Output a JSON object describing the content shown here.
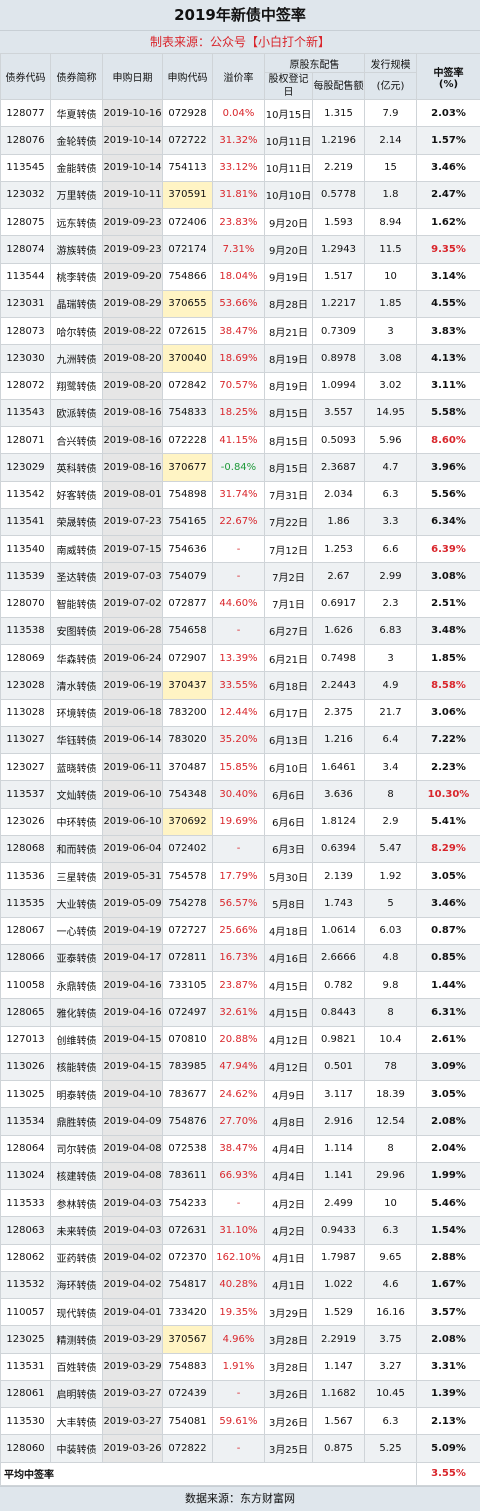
{
  "title": "2019年新债中签率",
  "subtitle": "制表来源：公众号【小白打个新】",
  "headers": {
    "bond_code": "债券代码",
    "bond_name": "债券简称",
    "apply_date": "申购日期",
    "apply_code": "申购代码",
    "premium": "溢价率",
    "placement_group": "原股东配售",
    "record_date": "股权登记日",
    "per_share": "每股配售额",
    "issue_size": "发行规模",
    "issue_unit": "(亿元)",
    "win_rate": "中签率",
    "win_unit": "(%)"
  },
  "rows": [
    {
      "code": "128077",
      "name": "华夏转债",
      "date": "2019-10-16",
      "apply": "072928",
      "apply_hl": false,
      "premium": "0.04%",
      "record": "10月15日",
      "per": "1.315",
      "size": "7.9",
      "rate": "2.03%",
      "hot": false
    },
    {
      "code": "128076",
      "name": "金轮转债",
      "date": "2019-10-14",
      "apply": "072722",
      "apply_hl": false,
      "premium": "31.32%",
      "record": "10月11日",
      "per": "1.2196",
      "size": "2.14",
      "rate": "1.57%",
      "hot": false
    },
    {
      "code": "113545",
      "name": "金能转债",
      "date": "2019-10-14",
      "apply": "754113",
      "apply_hl": false,
      "premium": "33.12%",
      "record": "10月11日",
      "per": "2.219",
      "size": "15",
      "rate": "3.46%",
      "hot": false
    },
    {
      "code": "123032",
      "name": "万里转债",
      "date": "2019-10-11",
      "apply": "370591",
      "apply_hl": true,
      "premium": "31.81%",
      "record": "10月10日",
      "per": "0.5778",
      "size": "1.8",
      "rate": "2.47%",
      "hot": false
    },
    {
      "code": "128075",
      "name": "远东转债",
      "date": "2019-09-23",
      "apply": "072406",
      "apply_hl": false,
      "premium": "23.83%",
      "record": "9月20日",
      "per": "1.593",
      "size": "8.94",
      "rate": "1.62%",
      "hot": false
    },
    {
      "code": "128074",
      "name": "游族转债",
      "date": "2019-09-23",
      "apply": "072174",
      "apply_hl": false,
      "premium": "7.31%",
      "record": "9月20日",
      "per": "1.2943",
      "size": "11.5",
      "rate": "9.35%",
      "hot": true
    },
    {
      "code": "113544",
      "name": "桃李转债",
      "date": "2019-09-20",
      "apply": "754866",
      "apply_hl": false,
      "premium": "18.04%",
      "record": "9月19日",
      "per": "1.517",
      "size": "10",
      "rate": "3.14%",
      "hot": false
    },
    {
      "code": "123031",
      "name": "晶瑞转债",
      "date": "2019-08-29",
      "apply": "370655",
      "apply_hl": true,
      "premium": "53.66%",
      "record": "8月28日",
      "per": "1.2217",
      "size": "1.85",
      "rate": "4.55%",
      "hot": false
    },
    {
      "code": "128073",
      "name": "哈尔转债",
      "date": "2019-08-22",
      "apply": "072615",
      "apply_hl": false,
      "premium": "38.47%",
      "record": "8月21日",
      "per": "0.7309",
      "size": "3",
      "rate": "3.83%",
      "hot": false
    },
    {
      "code": "123030",
      "name": "九洲转债",
      "date": "2019-08-20",
      "apply": "370040",
      "apply_hl": true,
      "premium": "18.69%",
      "record": "8月19日",
      "per": "0.8978",
      "size": "3.08",
      "rate": "4.13%",
      "hot": false
    },
    {
      "code": "128072",
      "name": "翔鹭转债",
      "date": "2019-08-20",
      "apply": "072842",
      "apply_hl": false,
      "premium": "70.57%",
      "record": "8月19日",
      "per": "1.0994",
      "size": "3.02",
      "rate": "3.11%",
      "hot": false
    },
    {
      "code": "113543",
      "name": "欧派转债",
      "date": "2019-08-16",
      "apply": "754833",
      "apply_hl": false,
      "premium": "18.25%",
      "record": "8月15日",
      "per": "3.557",
      "size": "14.95",
      "rate": "5.58%",
      "hot": false
    },
    {
      "code": "128071",
      "name": "合兴转债",
      "date": "2019-08-16",
      "apply": "072228",
      "apply_hl": false,
      "premium": "41.15%",
      "record": "8月15日",
      "per": "0.5093",
      "size": "5.96",
      "rate": "8.60%",
      "hot": true
    },
    {
      "code": "123029",
      "name": "英科转债",
      "date": "2019-08-16",
      "apply": "370677",
      "apply_hl": true,
      "premium": "-0.84%",
      "record": "8月15日",
      "per": "2.3687",
      "size": "4.7",
      "rate": "3.96%",
      "hot": false
    },
    {
      "code": "113542",
      "name": "好客转债",
      "date": "2019-08-01",
      "apply": "754898",
      "apply_hl": false,
      "premium": "31.74%",
      "record": "7月31日",
      "per": "2.034",
      "size": "6.3",
      "rate": "5.56%",
      "hot": false
    },
    {
      "code": "113541",
      "name": "荣晟转债",
      "date": "2019-07-23",
      "apply": "754165",
      "apply_hl": false,
      "premium": "22.67%",
      "record": "7月22日",
      "per": "1.86",
      "size": "3.3",
      "rate": "6.34%",
      "hot": false
    },
    {
      "code": "113540",
      "name": "南威转债",
      "date": "2019-07-15",
      "apply": "754636",
      "apply_hl": false,
      "premium": "-",
      "record": "7月12日",
      "per": "1.253",
      "size": "6.6",
      "rate": "6.39%",
      "hot": true
    },
    {
      "code": "113539",
      "name": "圣达转债",
      "date": "2019-07-03",
      "apply": "754079",
      "apply_hl": false,
      "premium": "-",
      "record": "7月2日",
      "per": "2.67",
      "size": "2.99",
      "rate": "3.08%",
      "hot": false
    },
    {
      "code": "128070",
      "name": "智能转债",
      "date": "2019-07-02",
      "apply": "072877",
      "apply_hl": false,
      "premium": "44.60%",
      "record": "7月1日",
      "per": "0.6917",
      "size": "2.3",
      "rate": "2.51%",
      "hot": false
    },
    {
      "code": "113538",
      "name": "安图转债",
      "date": "2019-06-28",
      "apply": "754658",
      "apply_hl": false,
      "premium": "-",
      "record": "6月27日",
      "per": "1.626",
      "size": "6.83",
      "rate": "3.48%",
      "hot": false
    },
    {
      "code": "128069",
      "name": "华森转债",
      "date": "2019-06-24",
      "apply": "072907",
      "apply_hl": false,
      "premium": "13.39%",
      "record": "6月21日",
      "per": "0.7498",
      "size": "3",
      "rate": "1.85%",
      "hot": false
    },
    {
      "code": "123028",
      "name": "清水转债",
      "date": "2019-06-19",
      "apply": "370437",
      "apply_hl": true,
      "premium": "33.55%",
      "record": "6月18日",
      "per": "2.2443",
      "size": "4.9",
      "rate": "8.58%",
      "hot": true
    },
    {
      "code": "113028",
      "name": "环境转债",
      "date": "2019-06-18",
      "apply": "783200",
      "apply_hl": false,
      "premium": "12.44%",
      "record": "6月17日",
      "per": "2.375",
      "size": "21.7",
      "rate": "3.06%",
      "hot": false
    },
    {
      "code": "113027",
      "name": "华钰转债",
      "date": "2019-06-14",
      "apply": "783020",
      "apply_hl": false,
      "premium": "35.20%",
      "record": "6月13日",
      "per": "1.216",
      "size": "6.4",
      "rate": "7.22%",
      "hot": false
    },
    {
      "code": "123027",
      "name": "蓝晓转债",
      "date": "2019-06-11",
      "apply": "370487",
      "apply_hl": false,
      "premium": "15.85%",
      "record": "6月10日",
      "per": "1.6461",
      "size": "3.4",
      "rate": "2.23%",
      "hot": false
    },
    {
      "code": "113537",
      "name": "文灿转债",
      "date": "2019-06-10",
      "apply": "754348",
      "apply_hl": false,
      "premium": "30.40%",
      "record": "6月6日",
      "per": "3.636",
      "size": "8",
      "rate": "10.30%",
      "hot": true
    },
    {
      "code": "123026",
      "name": "中环转债",
      "date": "2019-06-10",
      "apply": "370692",
      "apply_hl": true,
      "premium": "19.69%",
      "record": "6月6日",
      "per": "1.8124",
      "size": "2.9",
      "rate": "5.41%",
      "hot": false
    },
    {
      "code": "128068",
      "name": "和而转债",
      "date": "2019-06-04",
      "apply": "072402",
      "apply_hl": false,
      "premium": "-",
      "record": "6月3日",
      "per": "0.6394",
      "size": "5.47",
      "rate": "8.29%",
      "hot": true
    },
    {
      "code": "113536",
      "name": "三星转债",
      "date": "2019-05-31",
      "apply": "754578",
      "apply_hl": false,
      "premium": "17.79%",
      "record": "5月30日",
      "per": "2.139",
      "size": "1.92",
      "rate": "3.05%",
      "hot": false
    },
    {
      "code": "113535",
      "name": "大业转债",
      "date": "2019-05-09",
      "apply": "754278",
      "apply_hl": false,
      "premium": "56.57%",
      "record": "5月8日",
      "per": "1.743",
      "size": "5",
      "rate": "3.46%",
      "hot": false
    },
    {
      "code": "128067",
      "name": "一心转债",
      "date": "2019-04-19",
      "apply": "072727",
      "apply_hl": false,
      "premium": "25.66%",
      "record": "4月18日",
      "per": "1.0614",
      "size": "6.03",
      "rate": "0.87%",
      "hot": false
    },
    {
      "code": "128066",
      "name": "亚泰转债",
      "date": "2019-04-17",
      "apply": "072811",
      "apply_hl": false,
      "premium": "16.73%",
      "record": "4月16日",
      "per": "2.6666",
      "size": "4.8",
      "rate": "0.85%",
      "hot": false
    },
    {
      "code": "110058",
      "name": "永鼎转债",
      "date": "2019-04-16",
      "apply": "733105",
      "apply_hl": false,
      "premium": "23.87%",
      "record": "4月15日",
      "per": "0.782",
      "size": "9.8",
      "rate": "1.44%",
      "hot": false
    },
    {
      "code": "128065",
      "name": "雅化转债",
      "date": "2019-04-16",
      "apply": "072497",
      "apply_hl": false,
      "premium": "32.61%",
      "record": "4月15日",
      "per": "0.8443",
      "size": "8",
      "rate": "6.31%",
      "hot": false
    },
    {
      "code": "127013",
      "name": "创维转债",
      "date": "2019-04-15",
      "apply": "070810",
      "apply_hl": false,
      "premium": "20.88%",
      "record": "4月12日",
      "per": "0.9821",
      "size": "10.4",
      "rate": "2.61%",
      "hot": false
    },
    {
      "code": "113026",
      "name": "核能转债",
      "date": "2019-04-15",
      "apply": "783985",
      "apply_hl": false,
      "premium": "47.94%",
      "record": "4月12日",
      "per": "0.501",
      "size": "78",
      "rate": "3.09%",
      "hot": false
    },
    {
      "code": "113025",
      "name": "明泰转债",
      "date": "2019-04-10",
      "apply": "783677",
      "apply_hl": false,
      "premium": "24.62%",
      "record": "4月9日",
      "per": "3.117",
      "size": "18.39",
      "rate": "3.05%",
      "hot": false
    },
    {
      "code": "113534",
      "name": "鼎胜转债",
      "date": "2019-04-09",
      "apply": "754876",
      "apply_hl": false,
      "premium": "27.70%",
      "record": "4月8日",
      "per": "2.916",
      "size": "12.54",
      "rate": "2.08%",
      "hot": false
    },
    {
      "code": "128064",
      "name": "司尔转债",
      "date": "2019-04-08",
      "apply": "072538",
      "apply_hl": false,
      "premium": "38.47%",
      "record": "4月4日",
      "per": "1.114",
      "size": "8",
      "rate": "2.04%",
      "hot": false
    },
    {
      "code": "113024",
      "name": "核建转债",
      "date": "2019-04-08",
      "apply": "783611",
      "apply_hl": false,
      "premium": "66.93%",
      "record": "4月4日",
      "per": "1.141",
      "size": "29.96",
      "rate": "1.99%",
      "hot": false
    },
    {
      "code": "113533",
      "name": "参林转债",
      "date": "2019-04-03",
      "apply": "754233",
      "apply_hl": false,
      "premium": "-",
      "record": "4月2日",
      "per": "2.499",
      "size": "10",
      "rate": "5.46%",
      "hot": false
    },
    {
      "code": "128063",
      "name": "未来转债",
      "date": "2019-04-03",
      "apply": "072631",
      "apply_hl": false,
      "premium": "31.10%",
      "record": "4月2日",
      "per": "0.9433",
      "size": "6.3",
      "rate": "1.54%",
      "hot": false
    },
    {
      "code": "128062",
      "name": "亚药转债",
      "date": "2019-04-02",
      "apply": "072370",
      "apply_hl": false,
      "premium": "162.10%",
      "record": "4月1日",
      "per": "1.7987",
      "size": "9.65",
      "rate": "2.88%",
      "hot": false
    },
    {
      "code": "113532",
      "name": "海环转债",
      "date": "2019-04-02",
      "apply": "754817",
      "apply_hl": false,
      "premium": "40.28%",
      "record": "4月1日",
      "per": "1.022",
      "size": "4.6",
      "rate": "1.67%",
      "hot": false
    },
    {
      "code": "110057",
      "name": "现代转债",
      "date": "2019-04-01",
      "apply": "733420",
      "apply_hl": false,
      "premium": "19.35%",
      "record": "3月29日",
      "per": "1.529",
      "size": "16.16",
      "rate": "3.57%",
      "hot": false
    },
    {
      "code": "123025",
      "name": "精测转债",
      "date": "2019-03-29",
      "apply": "370567",
      "apply_hl": true,
      "premium": "4.96%",
      "record": "3月28日",
      "per": "2.2919",
      "size": "3.75",
      "rate": "2.08%",
      "hot": false
    },
    {
      "code": "113531",
      "name": "百姓转债",
      "date": "2019-03-29",
      "apply": "754883",
      "apply_hl": false,
      "premium": "1.91%",
      "record": "3月28日",
      "per": "1.147",
      "size": "3.27",
      "rate": "3.31%",
      "hot": false
    },
    {
      "code": "128061",
      "name": "启明转债",
      "date": "2019-03-27",
      "apply": "072439",
      "apply_hl": false,
      "premium": "-",
      "record": "3月26日",
      "per": "1.1682",
      "size": "10.45",
      "rate": "1.39%",
      "hot": false
    },
    {
      "code": "113530",
      "name": "大丰转债",
      "date": "2019-03-27",
      "apply": "754081",
      "apply_hl": false,
      "premium": "59.61%",
      "record": "3月26日",
      "per": "1.567",
      "size": "6.3",
      "rate": "2.13%",
      "hot": false
    },
    {
      "code": "128060",
      "name": "中装转债",
      "date": "2019-03-26",
      "apply": "072822",
      "apply_hl": false,
      "premium": "-",
      "record": "3月25日",
      "per": "0.875",
      "size": "5.25",
      "rate": "5.09%",
      "hot": false
    }
  ],
  "footer": {
    "label": "平均中签率",
    "value": "3.55%"
  },
  "source": "数据来源：东方财富网"
}
